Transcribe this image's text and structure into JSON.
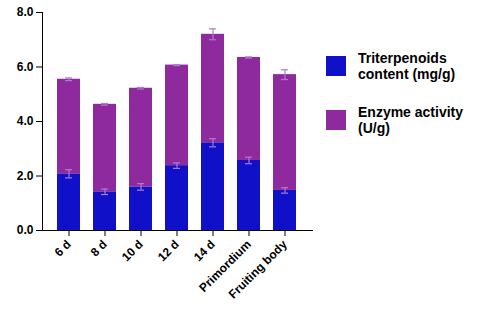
{
  "chart_data": {
    "type": "bar",
    "stacked": true,
    "legend": "right",
    "categories": [
      "6 d",
      "8 d",
      "10 d",
      "12 d",
      "14 d",
      "Primordium",
      "Fruiting body"
    ],
    "series": [
      {
        "name": "Triterpenoids content (mg/g)",
        "color": "#1010c8",
        "values": [
          2.08,
          1.42,
          1.6,
          2.38,
          3.22,
          2.57,
          1.47
        ],
        "errors": [
          0.15,
          0.1,
          0.12,
          0.1,
          0.15,
          0.12,
          0.1
        ]
      },
      {
        "name": "Enzyme activity (U/g)",
        "color": "#8e2a9e",
        "values": [
          3.47,
          3.21,
          3.62,
          3.69,
          3.98,
          3.78,
          4.25
        ],
        "errors": [
          0.05,
          0.03,
          0.03,
          0.02,
          0.2,
          0.02,
          0.18
        ]
      }
    ],
    "ylim": [
      0,
      8
    ],
    "yticks": [
      {
        "value": 0,
        "label": "0.0"
      },
      {
        "value": 2,
        "label": "2.0"
      },
      {
        "value": 4,
        "label": "4.0"
      },
      {
        "value": 6,
        "label": "6.0"
      },
      {
        "value": 8,
        "label": "8.0"
      }
    ]
  }
}
